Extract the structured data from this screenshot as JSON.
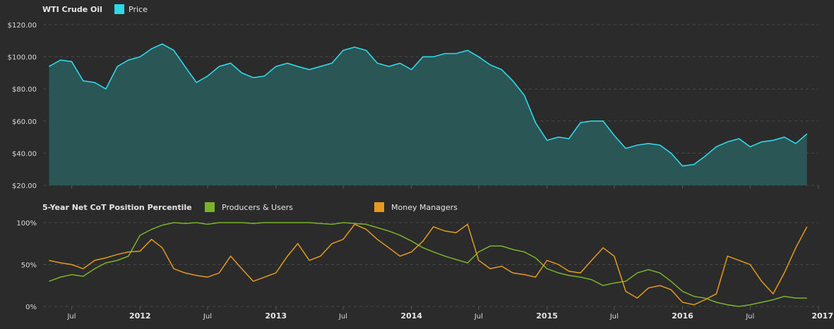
{
  "colors": {
    "background": "#2b2b2b",
    "price": "#2ed8e8",
    "price_fill": "#2a5656",
    "producers": "#7ab32a",
    "managers": "#e39a1f",
    "grid": "#4a4a4a"
  },
  "chart_data": [
    {
      "type": "area",
      "title": "WTI Crude Oil",
      "series": [
        {
          "name": "Price",
          "x": [
            "2011-05-01",
            "2011-06-01",
            "2011-07-01",
            "2011-08-01",
            "2011-09-01",
            "2011-10-01",
            "2011-11-01",
            "2011-12-01",
            "2012-01-01",
            "2012-02-01",
            "2012-03-01",
            "2012-04-01",
            "2012-05-01",
            "2012-06-01",
            "2012-07-01",
            "2012-08-01",
            "2012-09-01",
            "2012-10-01",
            "2012-11-01",
            "2012-12-01",
            "2013-01-01",
            "2013-02-01",
            "2013-03-01",
            "2013-04-01",
            "2013-05-01",
            "2013-06-01",
            "2013-07-01",
            "2013-08-01",
            "2013-09-01",
            "2013-10-01",
            "2013-11-01",
            "2013-12-01",
            "2014-01-01",
            "2014-02-01",
            "2014-03-01",
            "2014-04-01",
            "2014-05-01",
            "2014-06-01",
            "2014-07-01",
            "2014-08-01",
            "2014-09-01",
            "2014-10-01",
            "2014-11-01",
            "2014-12-01",
            "2015-01-01",
            "2015-02-01",
            "2015-03-01",
            "2015-04-01",
            "2015-05-01",
            "2015-06-01",
            "2015-07-01",
            "2015-08-01",
            "2015-09-01",
            "2015-10-01",
            "2015-11-01",
            "2015-12-01",
            "2016-01-01",
            "2016-02-01",
            "2016-03-01",
            "2016-04-01",
            "2016-05-01",
            "2016-06-01",
            "2016-07-01",
            "2016-08-01",
            "2016-09-01",
            "2016-10-01",
            "2016-11-01",
            "2016-12-01"
          ],
          "values": [
            94,
            98,
            97,
            85,
            84,
            80,
            94,
            98,
            100,
            105,
            108,
            104,
            94,
            84,
            88,
            94,
            96,
            90,
            87,
            88,
            94,
            96,
            94,
            92,
            94,
            96,
            104,
            106,
            104,
            96,
            94,
            96,
            92,
            100,
            100,
            102,
            102,
            104,
            100,
            95,
            92,
            85,
            76,
            59,
            48,
            50,
            49,
            59,
            60,
            60,
            51,
            43,
            45,
            46,
            45,
            40,
            32,
            33,
            38,
            44,
            47,
            49,
            44,
            47,
            48,
            50,
            46,
            52
          ],
          "unit": "$"
        }
      ],
      "yticks": [
        "$20.00",
        "$40.00",
        "$60.00",
        "$80.00",
        "$100.00",
        "$120.00"
      ],
      "ylim": [
        20,
        120
      ],
      "grid": true,
      "legend": "top-left"
    },
    {
      "type": "line",
      "title": "5-Year Net CoT Position Percentile",
      "x": [
        "2011-05-01",
        "2011-06-01",
        "2011-07-01",
        "2011-08-01",
        "2011-09-01",
        "2011-10-01",
        "2011-11-01",
        "2011-12-01",
        "2012-01-01",
        "2012-02-01",
        "2012-03-01",
        "2012-04-01",
        "2012-05-01",
        "2012-06-01",
        "2012-07-01",
        "2012-08-01",
        "2012-09-01",
        "2012-10-01",
        "2012-11-01",
        "2012-12-01",
        "2013-01-01",
        "2013-02-01",
        "2013-03-01",
        "2013-04-01",
        "2013-05-01",
        "2013-06-01",
        "2013-07-01",
        "2013-08-01",
        "2013-09-01",
        "2013-10-01",
        "2013-11-01",
        "2013-12-01",
        "2014-01-01",
        "2014-02-01",
        "2014-03-01",
        "2014-04-01",
        "2014-05-01",
        "2014-06-01",
        "2014-07-01",
        "2014-08-01",
        "2014-09-01",
        "2014-10-01",
        "2014-11-01",
        "2014-12-01",
        "2015-01-01",
        "2015-02-01",
        "2015-03-01",
        "2015-04-01",
        "2015-05-01",
        "2015-06-01",
        "2015-07-01",
        "2015-08-01",
        "2015-09-01",
        "2015-10-01",
        "2015-11-01",
        "2015-12-01",
        "2016-01-01",
        "2016-02-01",
        "2016-03-01",
        "2016-04-01",
        "2016-05-01",
        "2016-06-01",
        "2016-07-01",
        "2016-08-01",
        "2016-09-01",
        "2016-10-01",
        "2016-11-01",
        "2016-12-01"
      ],
      "series": [
        {
          "name": "Producers & Users",
          "values": [
            30,
            35,
            38,
            36,
            45,
            52,
            55,
            60,
            85,
            92,
            97,
            100,
            99,
            100,
            98,
            100,
            100,
            100,
            99,
            100,
            100,
            100,
            100,
            100,
            99,
            98,
            100,
            99,
            98,
            94,
            90,
            85,
            78,
            70,
            65,
            60,
            56,
            52,
            65,
            72,
            72,
            68,
            65,
            58,
            45,
            40,
            37,
            35,
            32,
            25,
            28,
            30,
            40,
            44,
            40,
            30,
            18,
            12,
            10,
            5,
            2,
            0,
            2,
            5,
            8,
            12,
            10,
            10
          ],
          "unit": "%"
        },
        {
          "name": "Money Managers",
          "values": [
            55,
            52,
            50,
            45,
            55,
            58,
            62,
            65,
            66,
            80,
            70,
            45,
            40,
            37,
            35,
            40,
            60,
            45,
            30,
            35,
            40,
            60,
            75,
            55,
            60,
            75,
            80,
            98,
            92,
            80,
            70,
            60,
            65,
            78,
            95,
            90,
            88,
            98,
            55,
            45,
            48,
            40,
            38,
            35,
            55,
            50,
            42,
            40,
            55,
            70,
            60,
            18,
            10,
            22,
            25,
            20,
            5,
            2,
            8,
            15,
            60,
            55,
            50,
            30,
            15,
            40,
            70,
            95
          ],
          "unit": "%"
        }
      ],
      "yticks": [
        "0%",
        "50%",
        "100%"
      ],
      "ylim": [
        0,
        100
      ],
      "grid": true,
      "legend": "top"
    }
  ],
  "xaxis": {
    "labels": [
      "Jul",
      "2012",
      "Jul",
      "2013",
      "Jul",
      "2014",
      "Jul",
      "2015",
      "Jul",
      "2016",
      "Jul",
      "2017"
    ],
    "label_dates": [
      "2011-07-01",
      "2012-01-01",
      "2012-07-01",
      "2013-01-01",
      "2013-07-01",
      "2014-01-01",
      "2014-07-01",
      "2015-01-01",
      "2015-07-01",
      "2016-01-01",
      "2016-07-01",
      "2017-01-01"
    ],
    "bold": [
      false,
      true,
      false,
      true,
      false,
      true,
      false,
      true,
      false,
      true,
      false,
      true
    ]
  }
}
